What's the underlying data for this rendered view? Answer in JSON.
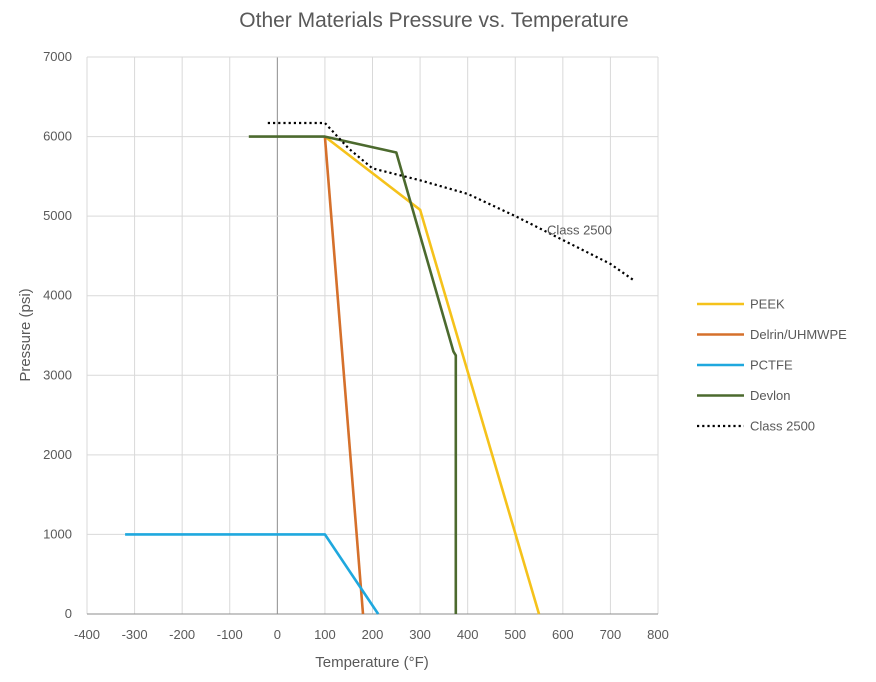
{
  "chart_data": {
    "type": "line",
    "title": "Other Materials Pressure vs. Temperature",
    "xlabel": "Temperature (°F)",
    "ylabel": "Pressure (psi)",
    "xlim": [
      -400,
      800
    ],
    "ylim": [
      0,
      7000
    ],
    "xticks": [
      -400,
      -300,
      -200,
      -100,
      0,
      100,
      200,
      300,
      400,
      500,
      600,
      700,
      800
    ],
    "yticks": [
      0,
      1000,
      2000,
      3000,
      4000,
      5000,
      6000,
      7000
    ],
    "grid": true,
    "legend_position": "right",
    "series": [
      {
        "name": "PEEK",
        "color": "#F5C21B",
        "style": "solid",
        "points": [
          [
            100,
            6000
          ],
          [
            300,
            5080
          ],
          [
            550,
            0
          ]
        ]
      },
      {
        "name": "Delrin/UHMWPE",
        "color": "#D5702B",
        "style": "solid",
        "points": [
          [
            100,
            6000
          ],
          [
            180,
            0
          ]
        ]
      },
      {
        "name": "PCTFE",
        "color": "#1FA8DE",
        "style": "solid",
        "points": [
          [
            -320,
            1000
          ],
          [
            100,
            1000
          ],
          [
            212,
            0
          ]
        ]
      },
      {
        "name": "Devlon",
        "color": "#4C6A2E",
        "style": "solid",
        "points": [
          [
            -60,
            6000
          ],
          [
            100,
            6000
          ],
          [
            250,
            5800
          ],
          [
            370,
            3300
          ],
          [
            375,
            3250
          ],
          [
            375,
            0
          ]
        ]
      },
      {
        "name": "Class 2500",
        "color": "#000000",
        "style": "dotted",
        "points": [
          [
            -20,
            6170
          ],
          [
            100,
            6170
          ],
          [
            150,
            5850
          ],
          [
            200,
            5600
          ],
          [
            300,
            5450
          ],
          [
            400,
            5280
          ],
          [
            500,
            5000
          ],
          [
            600,
            4700
          ],
          [
            700,
            4400
          ],
          [
            750,
            4190
          ]
        ]
      }
    ],
    "annotations": [
      {
        "text": "Class 2500",
        "x": 635,
        "y": 4770
      }
    ]
  }
}
